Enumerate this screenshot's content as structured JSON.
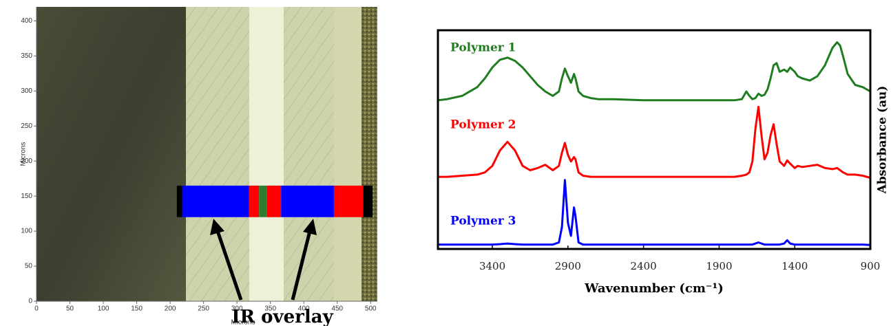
{
  "chart_data": [
    {
      "type": "image",
      "xlabel": "Microns",
      "ylabel": "Microns",
      "xlim": [
        0,
        510
      ],
      "ylim": [
        0,
        420
      ],
      "xticks": [
        0,
        50,
        100,
        150,
        200,
        250,
        300,
        350,
        400,
        450,
        500
      ],
      "yticks": [
        0,
        50,
        100,
        150,
        200,
        250,
        300,
        350,
        400
      ],
      "overlay": {
        "y": [
          120,
          165
        ],
        "segments": [
          {
            "x": [
              210,
              218
            ],
            "color": "#000000"
          },
          {
            "x": [
              218,
              318
            ],
            "color": "#0000ff"
          },
          {
            "x": [
              318,
              333
            ],
            "color": "#ff0000"
          },
          {
            "x": [
              333,
              345
            ],
            "color": "#2e7d32"
          },
          {
            "x": [
              345,
              366
            ],
            "color": "#ff0000"
          },
          {
            "x": [
              366,
              445
            ],
            "color": "#0000ff"
          },
          {
            "x": [
              445,
              489
            ],
            "color": "#ff0000"
          },
          {
            "x": [
              489,
              503
            ],
            "color": "#000000"
          }
        ]
      },
      "annotation": "IR overlay"
    },
    {
      "type": "line",
      "xlabel": "Wavenumber (cm⁻¹)",
      "ylabel": "Absorbance (au)",
      "xlim": [
        3760,
        900
      ],
      "ylim": [
        0,
        100
      ],
      "xticks": [
        3400,
        2900,
        2400,
        1900,
        1400,
        900
      ],
      "x": [
        3760,
        3700,
        3600,
        3500,
        3450,
        3400,
        3350,
        3300,
        3250,
        3200,
        3150,
        3100,
        3050,
        3000,
        2960,
        2940,
        2920,
        2900,
        2880,
        2860,
        2850,
        2830,
        2800,
        2750,
        2700,
        2600,
        2400,
        2200,
        2000,
        1800,
        1750,
        1720,
        1700,
        1680,
        1660,
        1640,
        1620,
        1600,
        1580,
        1560,
        1540,
        1520,
        1500,
        1470,
        1450,
        1430,
        1400,
        1380,
        1350,
        1300,
        1250,
        1200,
        1150,
        1120,
        1100,
        1080,
        1050,
        1000,
        950,
        900
      ],
      "series": [
        {
          "name": "Polymer 1",
          "color": "#1e7d1e",
          "values": [
            68,
            68.5,
            70,
            74,
            78,
            83,
            86.5,
            87.5,
            86,
            83,
            79,
            75,
            72,
            70,
            72,
            78,
            82.5,
            79,
            76,
            80,
            78,
            72,
            70,
            69,
            68.5,
            68.5,
            68,
            68,
            68,
            68,
            68.5,
            72,
            70,
            68.5,
            69,
            71,
            70,
            70.5,
            73,
            78,
            84,
            85,
            81,
            82,
            81,
            83,
            81,
            79,
            78,
            77,
            79,
            84,
            92,
            94.5,
            93,
            88,
            80,
            75,
            74,
            72
          ]
        },
        {
          "name": "Polymer 2",
          "color": "#ff0000",
          "values": [
            33,
            33,
            33.5,
            34,
            35,
            38,
            45,
            49,
            45,
            38,
            36,
            37,
            38.5,
            36,
            38,
            44,
            48.5,
            43,
            40,
            42,
            41,
            35,
            33.5,
            33,
            33,
            33,
            33,
            33,
            33,
            33,
            33.5,
            34,
            35,
            40,
            55,
            65,
            52,
            41,
            44,
            52,
            57,
            48,
            40,
            38,
            40.5,
            39,
            37,
            38,
            37.5,
            38,
            38.5,
            37,
            36.5,
            37,
            36,
            35,
            34,
            34,
            33.5,
            32.5
          ]
        },
        {
          "name": "Polymer 3",
          "color": "#0000ff",
          "values": [
            2,
            2,
            2,
            2,
            2,
            2,
            2.2,
            2.5,
            2.2,
            2,
            2,
            2,
            2,
            2,
            3,
            10,
            31.5,
            12,
            6,
            19,
            15,
            3,
            2,
            2,
            2,
            2,
            2,
            2,
            2,
            2,
            2,
            2,
            2,
            2,
            2.5,
            3,
            2.5,
            2,
            2,
            2,
            2,
            2,
            2,
            2.5,
            4,
            2.5,
            2,
            2,
            2,
            2,
            2,
            2,
            2,
            2,
            2,
            2,
            2,
            2,
            2,
            1.8
          ]
        }
      ]
    }
  ]
}
